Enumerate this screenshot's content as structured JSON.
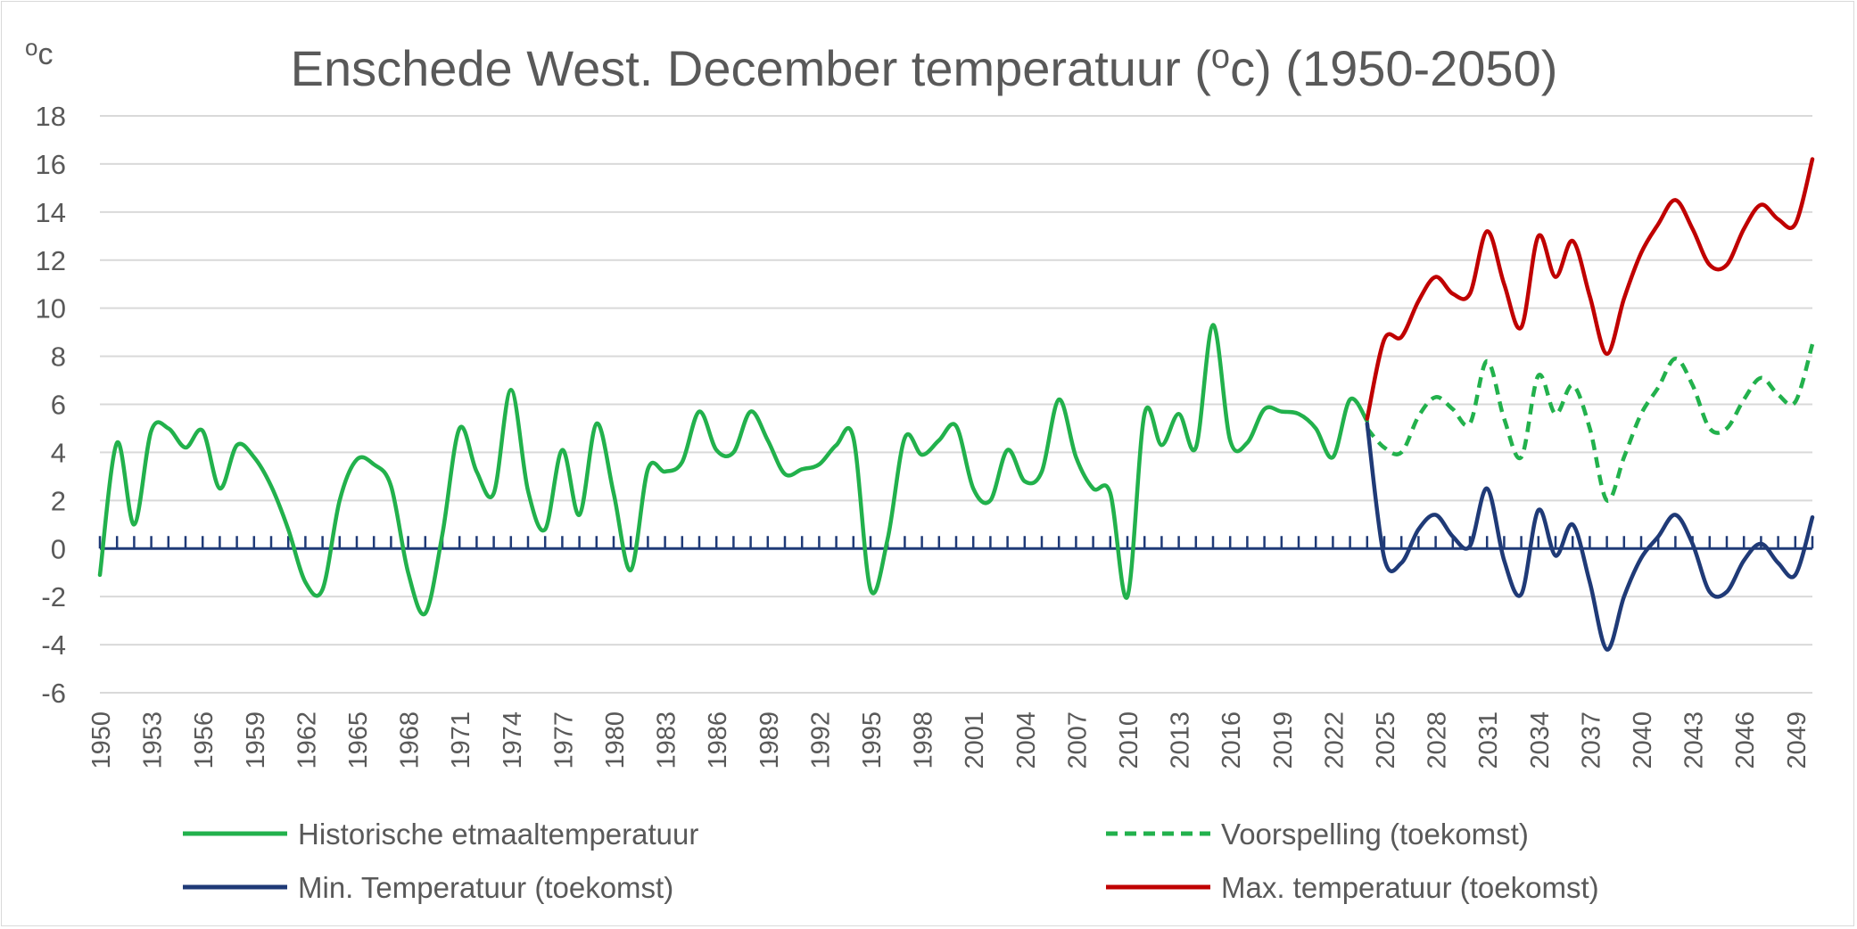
{
  "chart_data": {
    "type": "line",
    "title_main": "Enschede West. December temperatuur (",
    "title_sup": "o",
    "title_end": "c) (1950-2050)",
    "unit_sup": "o",
    "unit_text": "c",
    "xlabel": "",
    "ylabel": "",
    "ylim": [
      -6,
      18
    ],
    "ytick_step": 2,
    "x_ticks": [
      1950,
      1953,
      1956,
      1959,
      1962,
      1965,
      1968,
      1971,
      1974,
      1977,
      1980,
      1983,
      1986,
      1989,
      1992,
      1995,
      1998,
      2001,
      2004,
      2007,
      2010,
      2013,
      2016,
      2019,
      2022,
      2025,
      2028,
      2031,
      2034,
      2037,
      2040,
      2043,
      2046,
      2049
    ],
    "x_range": [
      1950,
      2050
    ],
    "grid": "horizontal",
    "legend_position": "bottom",
    "reference_line": {
      "y": 0,
      "color": "#1f3a77"
    },
    "series": [
      {
        "name": "Historische etmaaltemperatuur",
        "color": "#22b14c",
        "style": "solid",
        "x": [
          1950,
          1951,
          1952,
          1953,
          1954,
          1955,
          1956,
          1957,
          1958,
          1959,
          1960,
          1961,
          1962,
          1963,
          1964,
          1965,
          1966,
          1967,
          1968,
          1969,
          1970,
          1971,
          1972,
          1973,
          1974,
          1975,
          1976,
          1977,
          1978,
          1979,
          1980,
          1981,
          1982,
          1983,
          1984,
          1985,
          1986,
          1987,
          1988,
          1989,
          1990,
          1991,
          1992,
          1993,
          1994,
          1995,
          1996,
          1997,
          1998,
          1999,
          2000,
          2001,
          2002,
          2003,
          2004,
          2005,
          2006,
          2007,
          2008,
          2009,
          2010,
          2011,
          2012,
          2013,
          2014,
          2015,
          2016,
          2017,
          2018,
          2019,
          2020,
          2021,
          2022,
          2023,
          2024
        ],
        "values": [
          -1.1,
          4.4,
          1.0,
          4.9,
          5.0,
          4.2,
          4.9,
          2.5,
          4.3,
          3.8,
          2.6,
          0.8,
          -1.4,
          -1.7,
          2.0,
          3.7,
          3.5,
          2.6,
          -1.0,
          -2.7,
          0.6,
          5.0,
          3.2,
          2.3,
          6.6,
          2.4,
          0.8,
          4.1,
          1.4,
          5.2,
          2.3,
          -0.9,
          3.3,
          3.2,
          3.6,
          5.7,
          4.1,
          4.0,
          5.7,
          4.5,
          3.1,
          3.3,
          3.5,
          4.3,
          4.6,
          -1.7,
          0.4,
          4.6,
          3.9,
          4.5,
          5.1,
          2.5,
          2.0,
          4.1,
          2.8,
          3.2,
          6.2,
          3.8,
          2.5,
          2.3,
          -2.0,
          5.6,
          4.3,
          5.6,
          4.2,
          9.3,
          4.5,
          4.4,
          5.8,
          5.7,
          5.6,
          5.0,
          3.8,
          6.2,
          5.3
        ]
      },
      {
        "name": "Voorspelling (toekomst)",
        "color": "#22b14c",
        "style": "dashed",
        "x": [
          2024,
          2025,
          2026,
          2027,
          2028,
          2029,
          2030,
          2031,
          2032,
          2033,
          2034,
          2035,
          2036,
          2037,
          2038,
          2039,
          2040,
          2041,
          2042,
          2043,
          2044,
          2045,
          2046,
          2047,
          2048,
          2049,
          2050
        ],
        "values": [
          5.0,
          4.2,
          4.0,
          5.5,
          6.3,
          5.8,
          5.2,
          7.8,
          5.4,
          3.8,
          7.2,
          5.6,
          6.8,
          5.0,
          2.0,
          3.8,
          5.6,
          6.7,
          7.9,
          6.8,
          5.0,
          5.0,
          6.2,
          7.1,
          6.4,
          6.1,
          8.5
        ]
      },
      {
        "name": "Min. Temperatuur (toekomst)",
        "color": "#1f3a77",
        "style": "solid",
        "x": [
          2024,
          2025,
          2026,
          2027,
          2028,
          2029,
          2030,
          2031,
          2032,
          2033,
          2034,
          2035,
          2036,
          2037,
          2038,
          2039,
          2040,
          2041,
          2042,
          2043,
          2044,
          2045,
          2046,
          2047,
          2048,
          2049,
          2050
        ],
        "values": [
          5.2,
          -0.4,
          -0.6,
          0.8,
          1.4,
          0.5,
          0.1,
          2.5,
          -0.5,
          -1.9,
          1.6,
          -0.3,
          1.0,
          -1.4,
          -4.2,
          -2.0,
          -0.4,
          0.5,
          1.4,
          0.2,
          -1.8,
          -1.8,
          -0.5,
          0.2,
          -0.6,
          -1.1,
          1.3
        ]
      },
      {
        "name": "Max. temperatuur (toekomst)",
        "color": "#c00000",
        "style": "solid",
        "x": [
          2024,
          2025,
          2026,
          2027,
          2028,
          2029,
          2030,
          2031,
          2032,
          2033,
          2034,
          2035,
          2036,
          2037,
          2038,
          2039,
          2040,
          2041,
          2042,
          2043,
          2044,
          2045,
          2046,
          2047,
          2048,
          2049,
          2050
        ],
        "values": [
          5.4,
          8.7,
          8.8,
          10.3,
          11.3,
          10.6,
          10.6,
          13.2,
          11.0,
          9.2,
          13.0,
          11.3,
          12.8,
          10.5,
          8.1,
          10.4,
          12.3,
          13.5,
          14.5,
          13.3,
          11.8,
          11.8,
          13.3,
          14.3,
          13.7,
          13.5,
          16.2
        ]
      }
    ]
  }
}
